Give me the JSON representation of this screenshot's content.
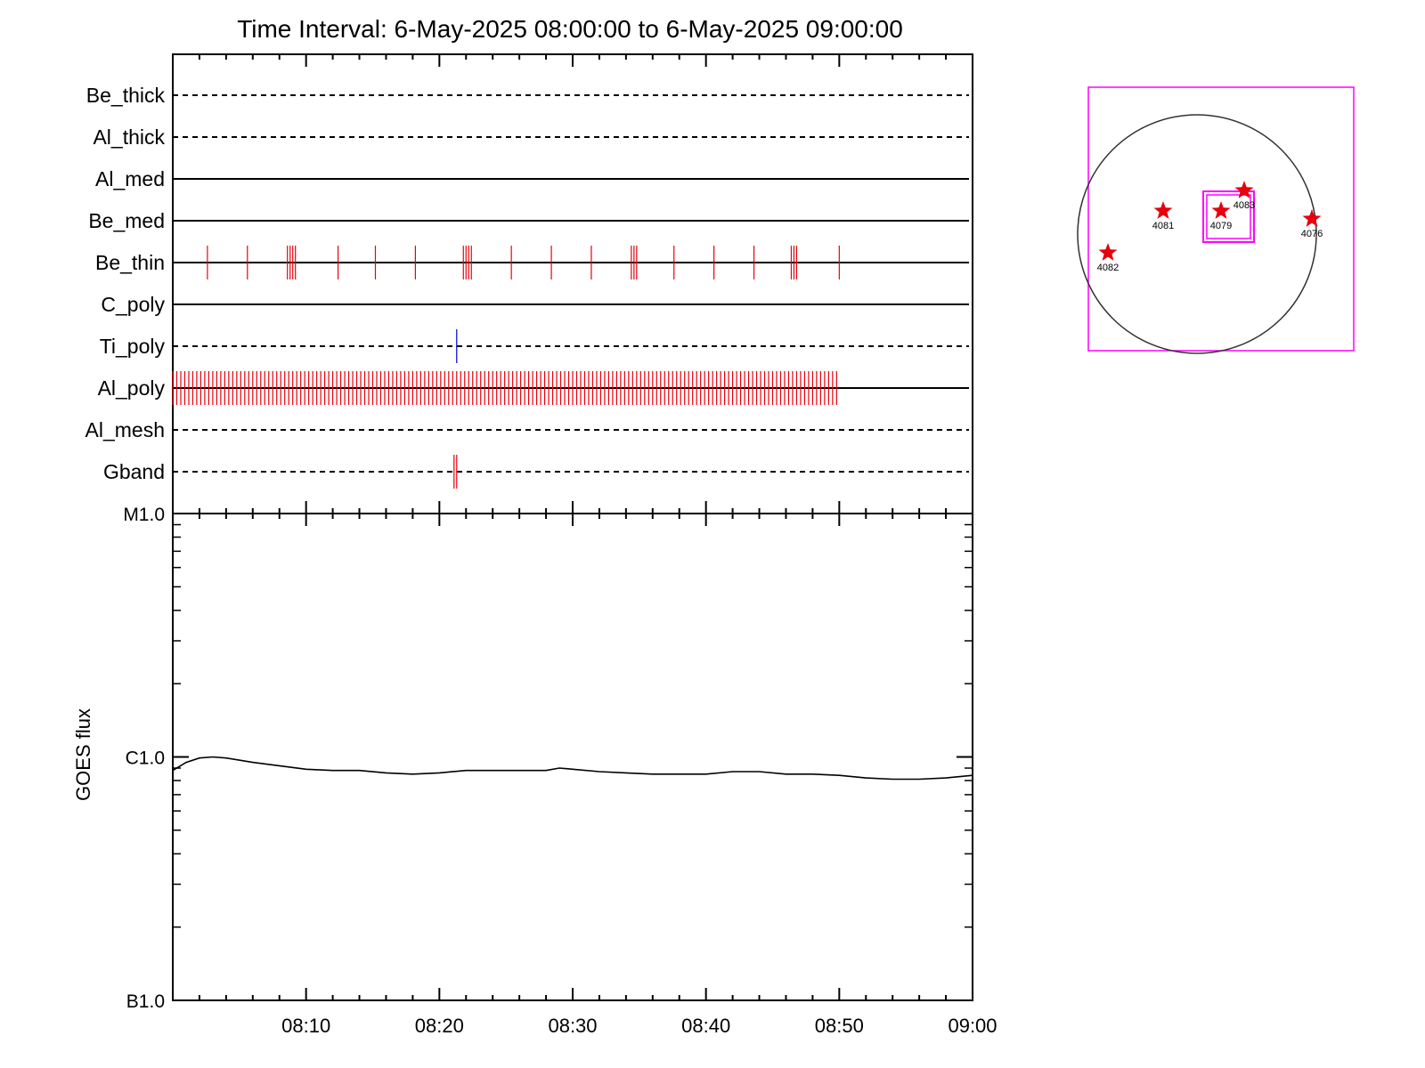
{
  "title": "Time Interval:  6-May-2025 08:00:00 to  6-May-2025 09:00:00",
  "colors": {
    "event_red": "#e8000b",
    "event_blue": "#0000cc",
    "box_magenta": "#ff00ff",
    "axis": "#000000"
  },
  "chart_data": [
    {
      "type": "timeline",
      "x_range": [
        "08:00",
        "09:00"
      ],
      "rows": [
        {
          "label": "Be_thick",
          "style": "dashed",
          "events": []
        },
        {
          "label": "Al_thick",
          "style": "dashed",
          "events": []
        },
        {
          "label": "Al_med",
          "style": "solid",
          "events": []
        },
        {
          "label": "Be_med",
          "style": "solid",
          "events": []
        },
        {
          "label": "Be_thin",
          "style": "solid",
          "color": "red",
          "events": [
            "08:02.6",
            "08:05.6",
            "08:08.6",
            "08:08.8",
            "08:09.0",
            "08:09.2",
            "08:12.4",
            "08:15.2",
            "08:18.2",
            "08:21.8",
            "08:22.0",
            "08:22.2",
            "08:22.4",
            "08:25.4",
            "08:28.4",
            "08:31.4",
            "08:34.4",
            "08:34.6",
            "08:34.8",
            "08:37.6",
            "08:40.6",
            "08:43.6",
            "08:46.4",
            "08:46.6",
            "08:46.8",
            "08:50.0"
          ]
        },
        {
          "label": "C_poly",
          "style": "solid",
          "events": []
        },
        {
          "label": "Ti_poly",
          "style": "dashed",
          "color": "blue",
          "events": [
            "08:21.3"
          ]
        },
        {
          "label": "Al_poly",
          "style": "solid",
          "color": "red",
          "events_every_min": 0.3,
          "events_from": "08:00.0",
          "events_to": "08:50.0"
        },
        {
          "label": "Al_mesh",
          "style": "dashed",
          "events": []
        },
        {
          "label": "Gband",
          "style": "dashed",
          "color": "red",
          "events": [
            "08:21.1",
            "08:21.3"
          ]
        }
      ]
    },
    {
      "type": "line",
      "ylabel": "GOES flux",
      "y_scale": "log",
      "y_ticks": [
        "M1.0",
        "C1.0",
        "B1.0"
      ],
      "ylim": [
        1e-07,
        1e-05
      ],
      "x_ticks": [
        "08:10",
        "08:20",
        "08:30",
        "08:40",
        "08:50",
        "09:00"
      ],
      "x_range_min": [
        0,
        60
      ],
      "series": [
        {
          "x": [
            0,
            1,
            2,
            3,
            4,
            6,
            8,
            10,
            12,
            14,
            16,
            18,
            20,
            22,
            24,
            26,
            28,
            29,
            30,
            32,
            34,
            36,
            38,
            40,
            42,
            44,
            46,
            48,
            50,
            52,
            54,
            56,
            58,
            60
          ],
          "y": [
            8.8e-07,
            9.5e-07,
            9.9e-07,
            1e-06,
            9.9e-07,
            9.5e-07,
            9.2e-07,
            8.9e-07,
            8.8e-07,
            8.8e-07,
            8.6e-07,
            8.5e-07,
            8.6e-07,
            8.8e-07,
            8.8e-07,
            8.8e-07,
            8.8e-07,
            9e-07,
            8.9e-07,
            8.7e-07,
            8.6e-07,
            8.5e-07,
            8.5e-07,
            8.5e-07,
            8.7e-07,
            8.7e-07,
            8.5e-07,
            8.5e-07,
            8.4e-07,
            8.2e-07,
            8.1e-07,
            8.1e-07,
            8.2e-07,
            8.4e-07
          ]
        }
      ]
    }
  ],
  "sun_map": {
    "regions": [
      {
        "label": "4082"
      },
      {
        "label": "4081"
      },
      {
        "label": "4079"
      },
      {
        "label": "4083"
      },
      {
        "label": "4076"
      }
    ]
  }
}
